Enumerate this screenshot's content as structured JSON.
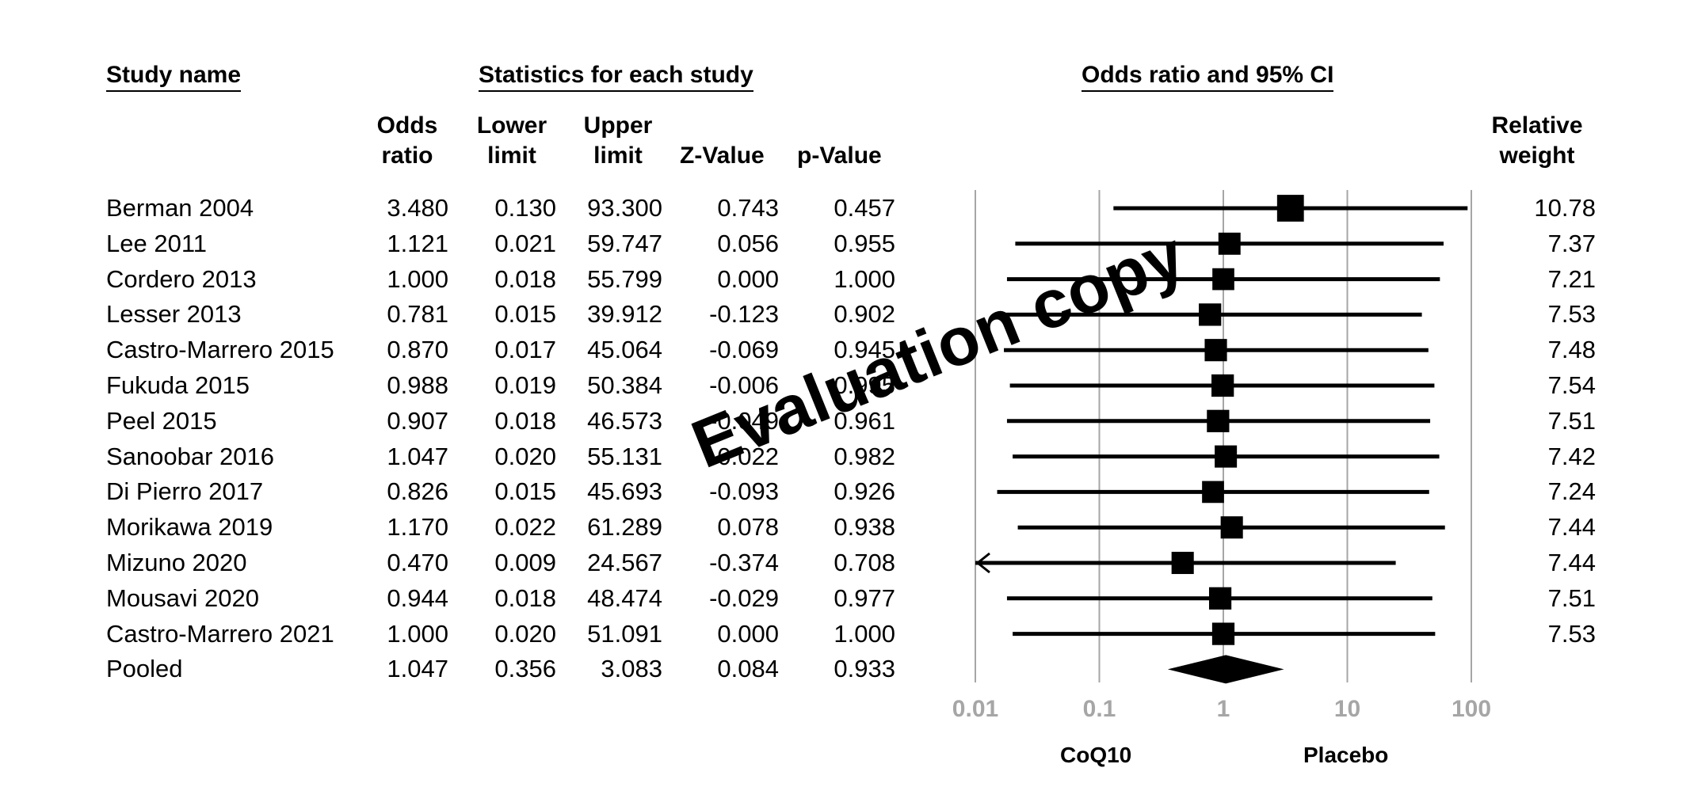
{
  "headers": {
    "study_name": "Study name",
    "statistics": "Statistics for each study",
    "odds_ratio_ci": "Odds ratio and 95% CI"
  },
  "columns": {
    "odds_ratio": [
      "Odds",
      "ratio"
    ],
    "lower_limit": [
      "Lower",
      "limit"
    ],
    "upper_limit": [
      "Upper",
      "limit"
    ],
    "z_value": "Z-Value",
    "p_value": "p-Value",
    "relative_weight": [
      "Relative",
      "weight"
    ]
  },
  "rows": [
    {
      "study": "Berman 2004",
      "or": "3.480",
      "lower": "0.130",
      "upper": "93.300",
      "z": "0.743",
      "p": "0.457",
      "weight": "10.78"
    },
    {
      "study": "Lee 2011",
      "or": "1.121",
      "lower": "0.021",
      "upper": "59.747",
      "z": "0.056",
      "p": "0.955",
      "weight": "7.37"
    },
    {
      "study": "Cordero 2013",
      "or": "1.000",
      "lower": "0.018",
      "upper": "55.799",
      "z": "0.000",
      "p": "1.000",
      "weight": "7.21"
    },
    {
      "study": "Lesser 2013",
      "or": "0.781",
      "lower": "0.015",
      "upper": "39.912",
      "z": "-0.123",
      "p": "0.902",
      "weight": "7.53"
    },
    {
      "study": "Castro-Marrero 2015",
      "or": "0.870",
      "lower": "0.017",
      "upper": "45.064",
      "z": "-0.069",
      "p": "0.945",
      "weight": "7.48"
    },
    {
      "study": "Fukuda 2015",
      "or": "0.988",
      "lower": "0.019",
      "upper": "50.384",
      "z": "-0.006",
      "p": "0.995",
      "weight": "7.54"
    },
    {
      "study": "Peel 2015",
      "or": "0.907",
      "lower": "0.018",
      "upper": "46.573",
      "z": "-0.049",
      "p": "0.961",
      "weight": "7.51"
    },
    {
      "study": "Sanoobar 2016",
      "or": "1.047",
      "lower": "0.020",
      "upper": "55.131",
      "z": "0.022",
      "p": "0.982",
      "weight": "7.42"
    },
    {
      "study": "Di Pierro 2017",
      "or": "0.826",
      "lower": "0.015",
      "upper": "45.693",
      "z": "-0.093",
      "p": "0.926",
      "weight": "7.24"
    },
    {
      "study": "Morikawa 2019",
      "or": "1.170",
      "lower": "0.022",
      "upper": "61.289",
      "z": "0.078",
      "p": "0.938",
      "weight": "7.44"
    },
    {
      "study": "Mizuno 2020",
      "or": "0.470",
      "lower": "0.009",
      "upper": "24.567",
      "z": "-0.374",
      "p": "0.708",
      "weight": "7.44"
    },
    {
      "study": "Mousavi 2020",
      "or": "0.944",
      "lower": "0.018",
      "upper": "48.474",
      "z": "-0.029",
      "p": "0.977",
      "weight": "7.51"
    },
    {
      "study": "Castro-Marrero 2021",
      "or": "1.000",
      "lower": "0.020",
      "upper": "51.091",
      "z": "0.000",
      "p": "1.000",
      "weight": "7.53"
    },
    {
      "study": "Pooled",
      "or": "1.047",
      "lower": "0.356",
      "upper": "3.083",
      "z": "0.084",
      "p": "0.933",
      "weight": ""
    }
  ],
  "favours": {
    "left": "CoQ10",
    "right": "Placebo"
  },
  "watermark": "Evaluation copy",
  "colors": {
    "axis_tick": "#a6a6a6",
    "gridline": "#a6a6a6",
    "marker": "#000000"
  },
  "chart_data": {
    "type": "scatter",
    "subtype": "forest_plot",
    "title": "Odds ratio and 95% CI",
    "x_scale": "log",
    "xlim": [
      0.01,
      100
    ],
    "x_ticks": [
      "0.01",
      "0.1",
      "1",
      "10",
      "100"
    ],
    "reference_line": 1,
    "series": [
      {
        "study": "Berman 2004",
        "or": 3.48,
        "lower": 0.13,
        "upper": 93.3,
        "weight": 10.78
      },
      {
        "study": "Lee 2011",
        "or": 1.121,
        "lower": 0.021,
        "upper": 59.747,
        "weight": 7.37
      },
      {
        "study": "Cordero 2013",
        "or": 1.0,
        "lower": 0.018,
        "upper": 55.799,
        "weight": 7.21
      },
      {
        "study": "Lesser 2013",
        "or": 0.781,
        "lower": 0.015,
        "upper": 39.912,
        "weight": 7.53
      },
      {
        "study": "Castro-Marrero 2015",
        "or": 0.87,
        "lower": 0.017,
        "upper": 45.064,
        "weight": 7.48
      },
      {
        "study": "Fukuda 2015",
        "or": 0.988,
        "lower": 0.019,
        "upper": 50.384,
        "weight": 7.54
      },
      {
        "study": "Peel 2015",
        "or": 0.907,
        "lower": 0.018,
        "upper": 46.573,
        "weight": 7.51
      },
      {
        "study": "Sanoobar 2016",
        "or": 1.047,
        "lower": 0.02,
        "upper": 55.131,
        "weight": 7.42
      },
      {
        "study": "Di Pierro 2017",
        "or": 0.826,
        "lower": 0.015,
        "upper": 45.693,
        "weight": 7.24
      },
      {
        "study": "Morikawa 2019",
        "or": 1.17,
        "lower": 0.022,
        "upper": 61.289,
        "weight": 7.44
      },
      {
        "study": "Mizuno 2020",
        "or": 0.47,
        "lower": 0.009,
        "upper": 24.567,
        "weight": 7.44
      },
      {
        "study": "Mousavi 2020",
        "or": 0.944,
        "lower": 0.018,
        "upper": 48.474,
        "weight": 7.51
      },
      {
        "study": "Castro-Marrero 2021",
        "or": 1.0,
        "lower": 0.02,
        "upper": 51.091,
        "weight": 7.53
      }
    ],
    "pooled": {
      "study": "Pooled",
      "or": 1.047,
      "lower": 0.356,
      "upper": 3.083
    }
  }
}
